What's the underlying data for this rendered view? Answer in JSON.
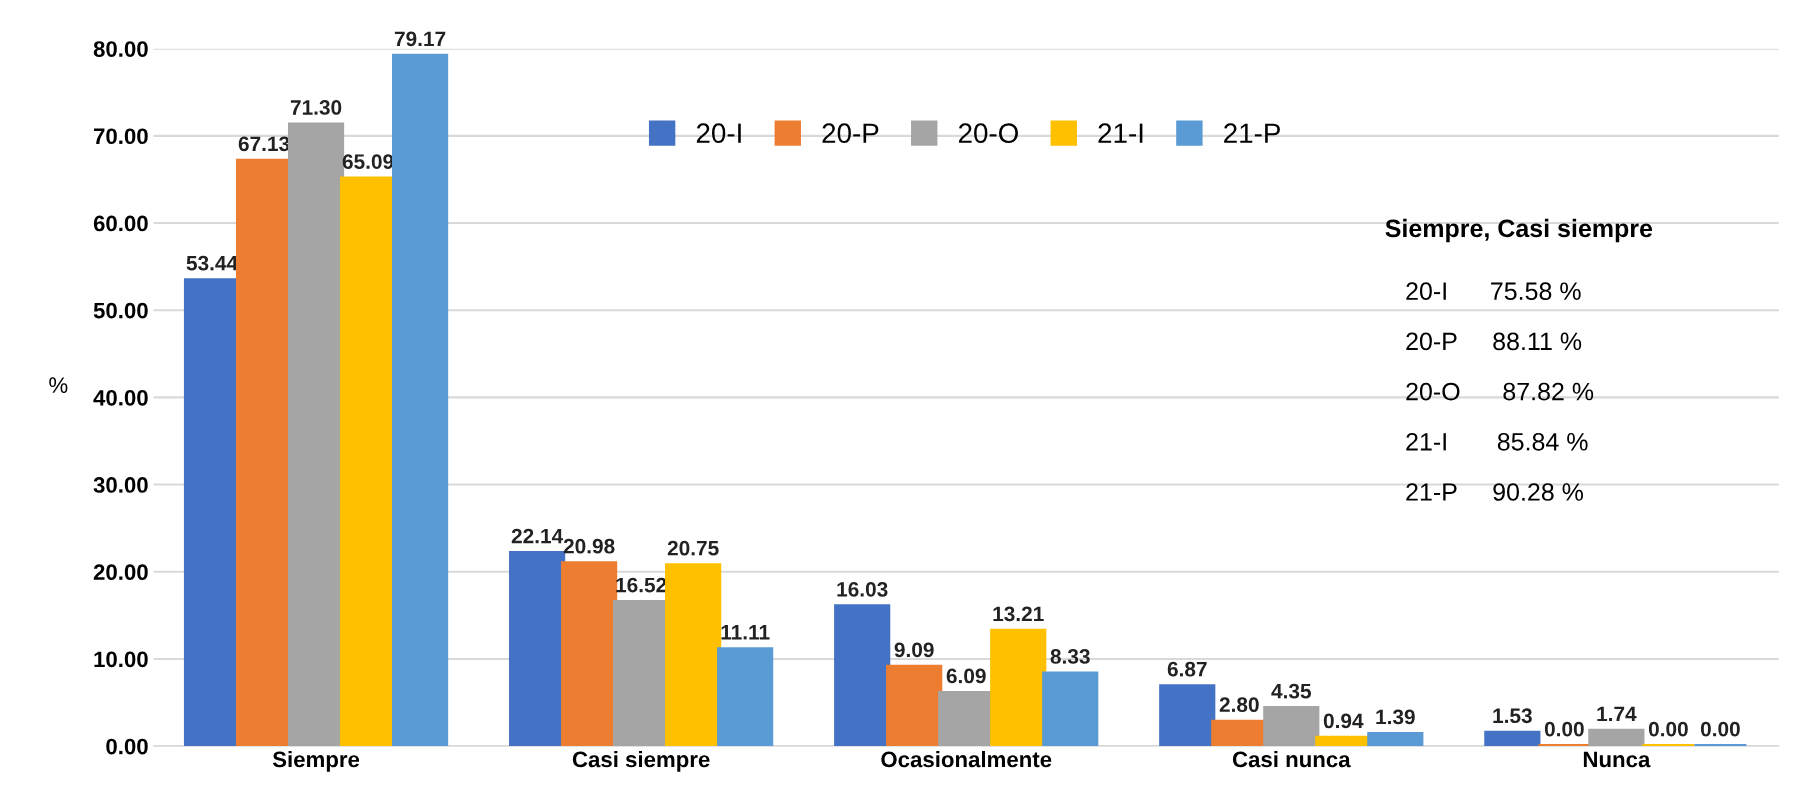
{
  "chart_data": {
    "type": "bar",
    "ylabel": "%",
    "categories": [
      "Siempre",
      "Casi siempre",
      "Ocasionalmente",
      "Casi nunca",
      "Nunca"
    ],
    "series": [
      {
        "name": "20-I",
        "color": "#4472c4",
        "values": [
          53.44,
          22.14,
          16.03,
          6.87,
          1.53
        ],
        "value_labels": [
          "53.44",
          "22.14",
          "16.03",
          "6.87",
          "1.53"
        ]
      },
      {
        "name": "20-P",
        "color": "#ed7d31",
        "values": [
          67.13,
          20.98,
          9.09,
          2.8,
          0.0
        ],
        "value_labels": [
          "67.13",
          "20.98",
          "9.09",
          "2.80",
          "0.00"
        ]
      },
      {
        "name": "20-O",
        "color": "#a5a5a5",
        "values": [
          71.3,
          16.52,
          6.09,
          4.35,
          1.74
        ],
        "value_labels": [
          "71.30",
          "16.52",
          "6.09",
          "4.35",
          "1.74"
        ]
      },
      {
        "name": "21-I",
        "color": "#ffc000",
        "values": [
          65.09,
          20.75,
          13.21,
          0.94,
          0.0
        ],
        "value_labels": [
          "65.09",
          "20.75",
          "13.21",
          "0.94",
          "0.00"
        ]
      },
      {
        "name": "21-P",
        "color": "#5b9bd5",
        "values": [
          79.17,
          11.11,
          8.33,
          1.39,
          0.0
        ],
        "value_labels": [
          "79.17",
          "11.11",
          "8.33",
          "1.39",
          "0.00"
        ]
      }
    ],
    "ylim": [
      0,
      80
    ],
    "yticks": [
      {
        "value": 0,
        "label": "0.00"
      },
      {
        "value": 10,
        "label": "10.00"
      },
      {
        "value": 20,
        "label": "20.00"
      },
      {
        "value": 30,
        "label": "30.00"
      },
      {
        "value": 40,
        "label": "40.00"
      },
      {
        "value": 50,
        "label": "50.00"
      },
      {
        "value": 60,
        "label": "60.00"
      },
      {
        "value": 70,
        "label": "70.00"
      },
      {
        "value": 80,
        "label": "80.00"
      }
    ],
    "grid": "y",
    "legend": "top",
    "annotations": [
      "Siempre, Casi siempre",
      "20-I      75.58 %",
      "20-P     88.11 %",
      "20-O      87.82 %",
      "21-I       85.84 %",
      "21-P     90.28 %"
    ]
  }
}
